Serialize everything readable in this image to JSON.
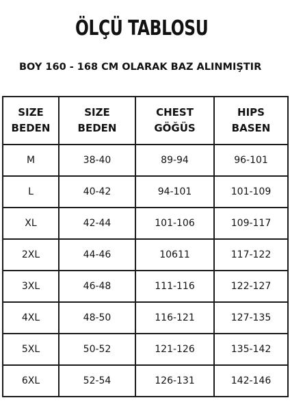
{
  "title": "ÖLÇÜ TABLOSU",
  "subtitle": "BOY 160 - 168 CM OLARAK BAZ ALINMIŞTIR",
  "headers": [
    {
      "line1": "SIZE",
      "line2": "BEDEN"
    },
    {
      "line1": "SIZE",
      "line2": "BEDEN"
    },
    {
      "line1": "CHEST",
      "line2": "GÖĞÜS"
    },
    {
      "line1": "HIPS",
      "line2": "BASEN"
    }
  ],
  "rows": [
    [
      "M",
      "38-40",
      "89-94",
      "96-101"
    ],
    [
      "L",
      "40-42",
      "94-101",
      "101-109"
    ],
    [
      "XL",
      "42-44",
      "101-106",
      "109-117"
    ],
    [
      "2XL",
      "44-46",
      "10611",
      "117-122"
    ],
    [
      "3XL",
      "46-48",
      "111-116",
      "122-127"
    ],
    [
      "4XL",
      "48-50",
      "116-121",
      "127-135"
    ],
    [
      "5XL",
      "50-52",
      "121-126",
      "135-142"
    ],
    [
      "6XL",
      "52-54",
      "126-131",
      "142-146"
    ]
  ]
}
